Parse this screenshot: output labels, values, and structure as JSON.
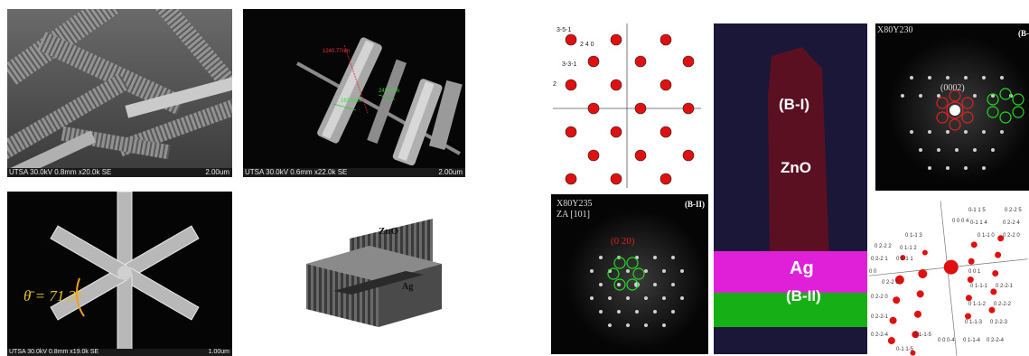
{
  "figure": {
    "panel_a": {
      "footer_left": "UTSA 30.0kV 0.8mm x20.0k SE",
      "footer_right": "2.00um"
    },
    "panel_b": {
      "footer_left": "UTSA 30.0kV 0.6mm x22.0k SE",
      "footer_right": "2.00um",
      "measure_1": "1240.77nm",
      "measure_2": "163.6nm",
      "measure_3": "243.6nm"
    },
    "panel_c": {
      "angle_label": "θ̄ = 71.3°",
      "footer_left": "UTSA 30.0kV 0.8mm x19.0k SE",
      "footer_right": "1.00um"
    },
    "panel_d": {
      "zno_label": "ZnO",
      "ag_label": "Ag"
    },
    "sim_pattern_top": {
      "labels": [
        "3-5-1",
        "2 4 0",
        "3-3-1",
        "2"
      ]
    },
    "diffraction_bii": {
      "location": "X80Y235",
      "zone_axis": "ZA [101]",
      "tag": "(B-II)",
      "spot_label": "(0 20)"
    },
    "eds_map": {
      "bi_label": "(B-I)",
      "zno_label": "ZnO",
      "ag_label": "Ag",
      "bii_label": "(B-II)"
    },
    "diffraction_bi": {
      "location": "X80Y230",
      "tag": "(B-",
      "spot_label": "(0002)"
    },
    "sim_pattern_bottom": {
      "labels": [
        "0-1 1 5",
        "0 2-2 5",
        "0 0 0 4",
        "0-1 1 4",
        "0 2-2 4",
        "0 1-1 3",
        "0 1-1 2",
        "0 2-2 2",
        "0 1-1 1",
        "0 2-2 1",
        "0 0",
        "0 0 1",
        "0 1-1 0",
        "0 2-2 0",
        "0 2-2 0",
        "0 2-2-1",
        "0 1-1-1",
        "0 1-1-2",
        "0 2-2-2",
        "0 1-1-3",
        "0 2-2-3",
        "0 1-1-4",
        "0 2-2-4",
        "0-1 1-5",
        "0 1-1-5",
        "0 0 0-4",
        "0 2-2-4",
        "0 2-2 0",
        "0 2-2-1"
      ]
    }
  }
}
